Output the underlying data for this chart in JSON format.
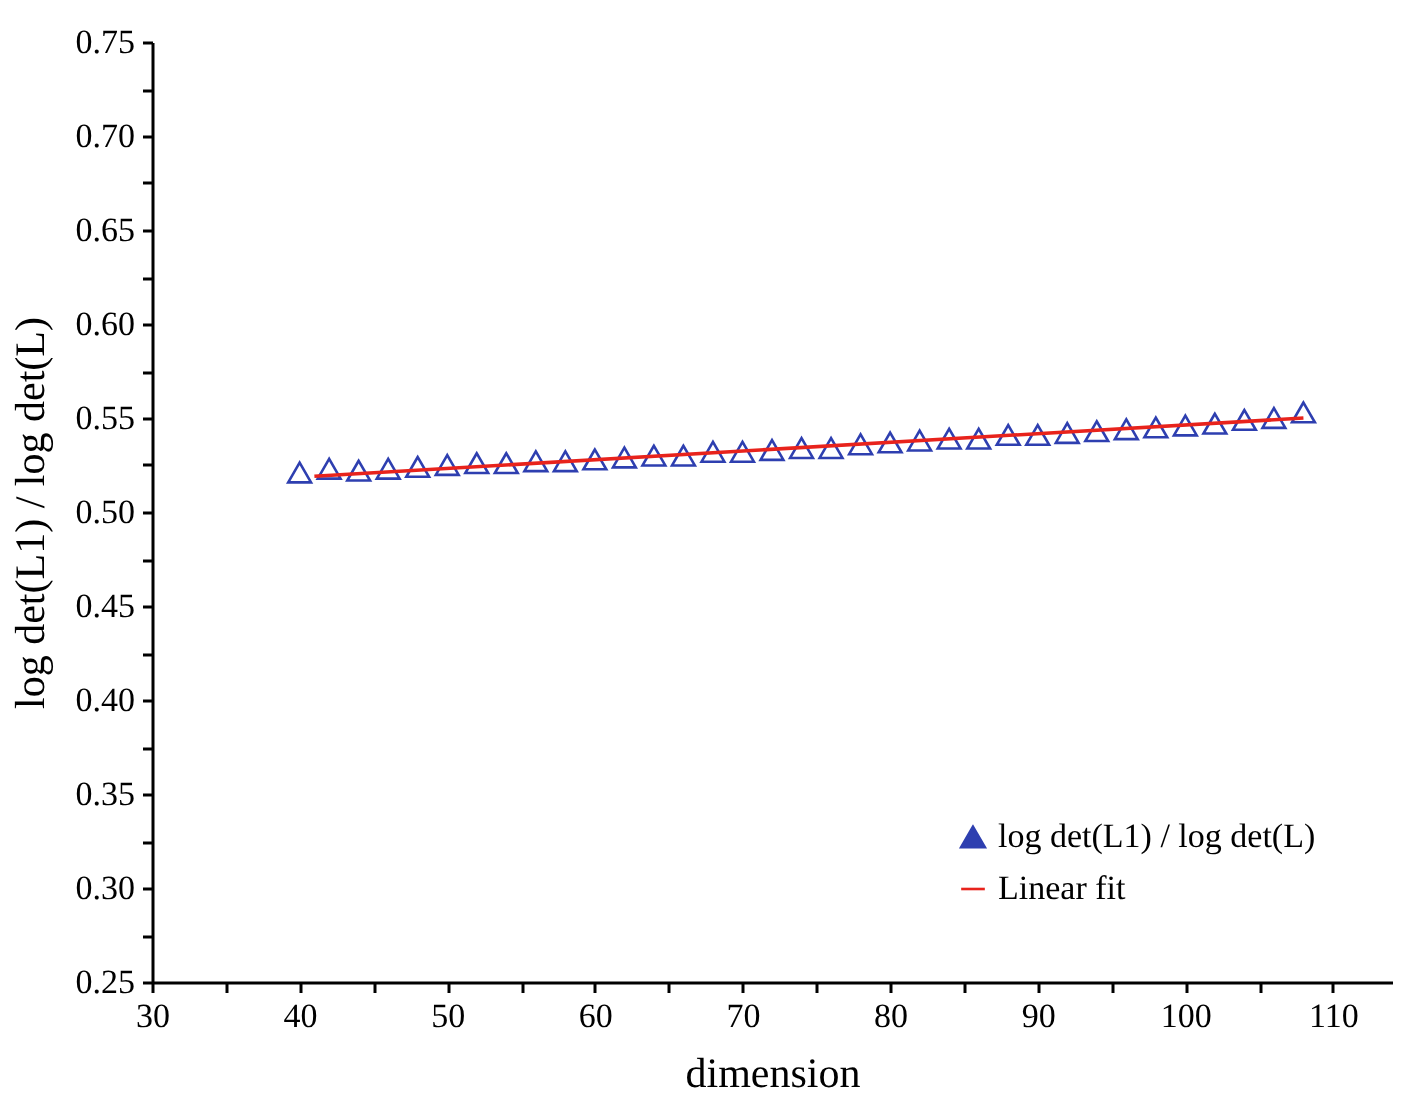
{
  "chart_data": {
    "type": "scatter",
    "xlabel": "dimension",
    "ylabel": "log det(L1) / log det(L)",
    "xlim": [
      30,
      114
    ],
    "ylim": [
      0.25,
      0.75
    ],
    "xticks": [
      30,
      {
        "value": 35,
        "label": null
      },
      40,
      {
        "value": 45,
        "label": null
      },
      50,
      {
        "value": 55,
        "label": null
      },
      60,
      {
        "value": 65,
        "label": null
      },
      70,
      {
        "value": 75,
        "label": null
      },
      80,
      {
        "value": 85,
        "label": null
      },
      90,
      {
        "value": 95,
        "label": null
      },
      100,
      {
        "value": 105,
        "label": null
      },
      110
    ],
    "yticks": [
      0.25,
      {
        "value": 0.275,
        "label": null
      },
      {
        "value": 0.3,
        "label": "0.30"
      },
      {
        "value": 0.325,
        "label": null
      },
      0.35,
      {
        "value": 0.375,
        "label": null
      },
      {
        "value": 0.4,
        "label": "0.40"
      },
      {
        "value": 0.425,
        "label": null
      },
      0.45,
      {
        "value": 0.475,
        "label": null
      },
      {
        "value": 0.5,
        "label": "0.50"
      },
      {
        "value": 0.525,
        "label": null
      },
      0.55,
      {
        "value": 0.575,
        "label": null
      },
      {
        "value": 0.6,
        "label": "0.60"
      },
      {
        "value": 0.625,
        "label": null
      },
      0.65,
      {
        "value": 0.675,
        "label": null
      },
      {
        "value": 0.7,
        "label": "0.70"
      },
      {
        "value": 0.725,
        "label": null
      },
      0.75
    ],
    "grid": false,
    "legend": "bottom right",
    "series": [
      {
        "name": "log det(L1) / log det(L)",
        "marker": "triangle",
        "color": "#2e3fb0",
        "x": [
          40,
          42,
          44,
          46,
          48,
          50,
          52,
          54,
          56,
          58,
          60,
          62,
          64,
          66,
          68,
          70,
          72,
          74,
          76,
          78,
          80,
          82,
          84,
          86,
          88,
          90,
          92,
          94,
          96,
          98,
          100,
          102,
          104,
          106,
          108
        ],
        "values": [
          0.521,
          0.523,
          0.522,
          0.523,
          0.524,
          0.525,
          0.526,
          0.526,
          0.527,
          0.527,
          0.528,
          0.529,
          0.53,
          0.53,
          0.532,
          0.532,
          0.533,
          0.534,
          0.534,
          0.536,
          0.537,
          0.538,
          0.539,
          0.539,
          0.541,
          0.541,
          0.542,
          0.543,
          0.544,
          0.545,
          0.546,
          0.547,
          0.549,
          0.55,
          0.553
        ]
      },
      {
        "name": "Linear fit",
        "type": "line",
        "marker": "none",
        "color": "#e8231c",
        "x": [
          41,
          108
        ],
        "values": [
          0.519,
          0.55
        ]
      }
    ]
  }
}
